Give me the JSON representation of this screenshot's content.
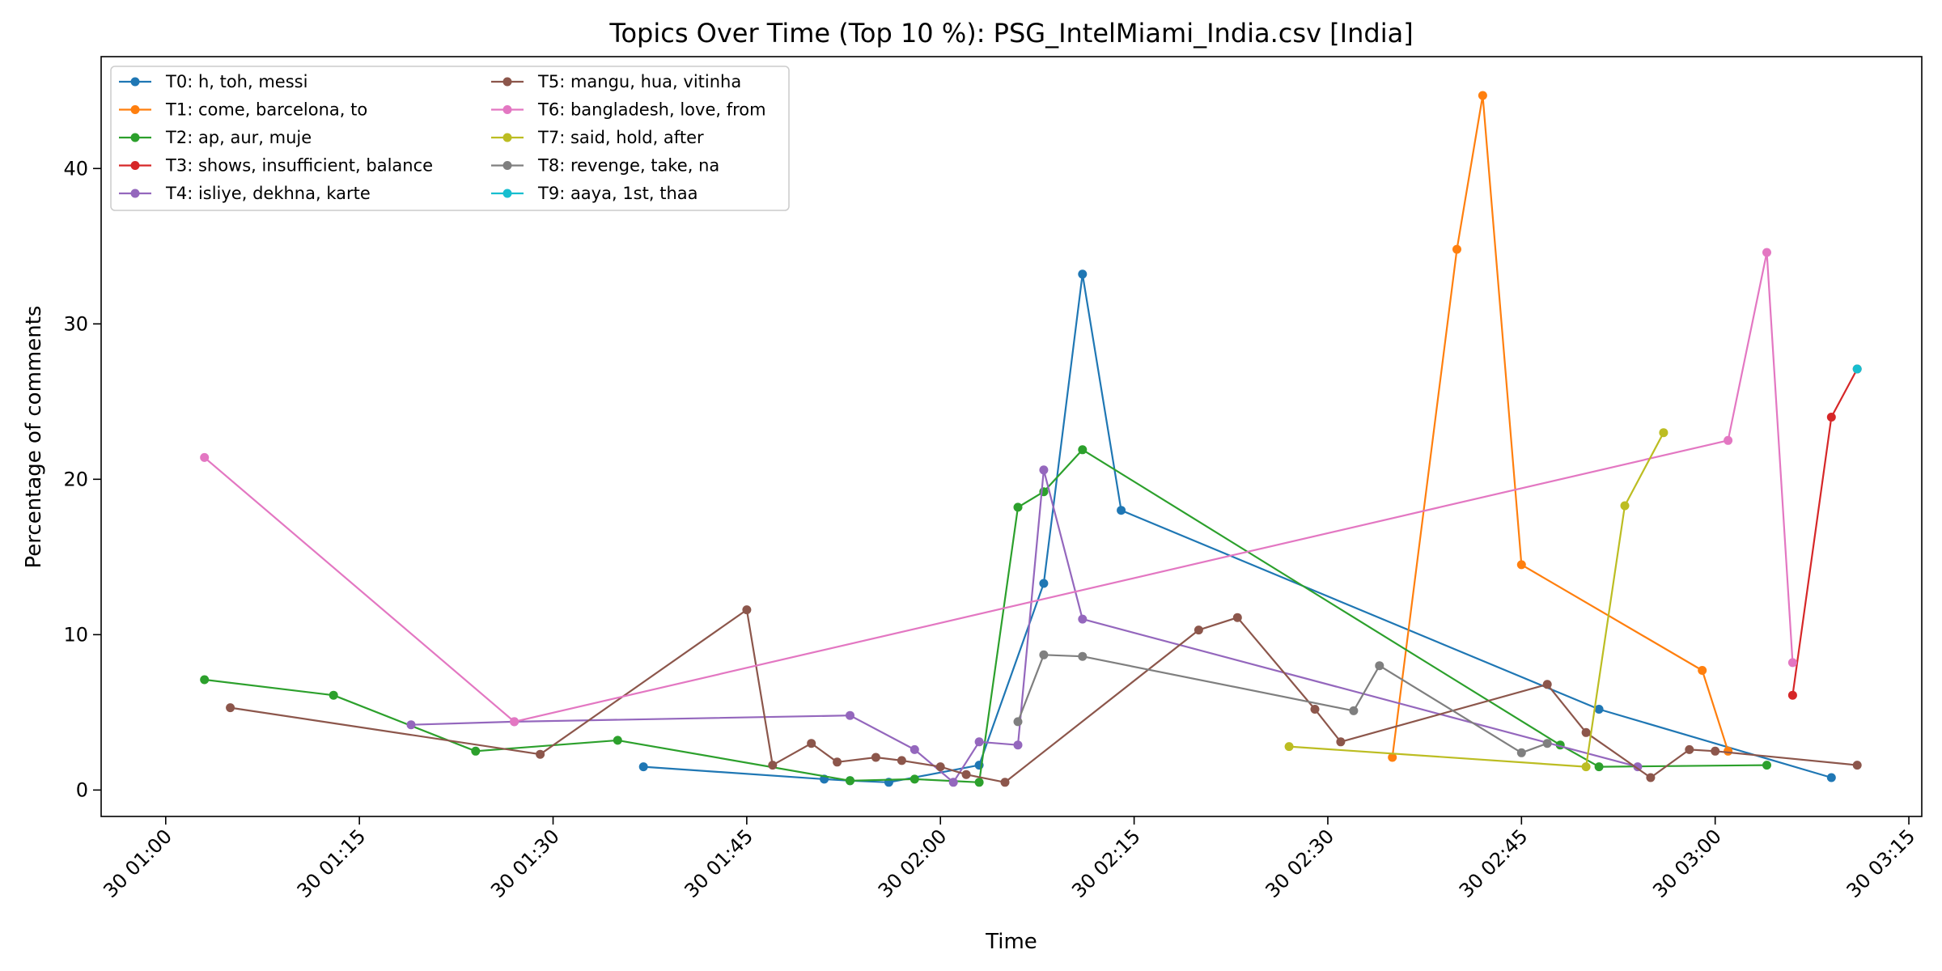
{
  "chart_data": {
    "type": "line",
    "title": "Topics Over Time (Top 10 %): PSG_IntelMiami_India.csv [India]",
    "xlabel": "Time",
    "ylabel": "Percentage of comments",
    "x_axis": {
      "kind": "time",
      "range": [
        "2023-07-30T00:55",
        "2023-07-30T03:16"
      ],
      "ticks": [
        "2023-07-30T01:00",
        "2023-07-30T01:15",
        "2023-07-30T01:30",
        "2023-07-30T01:45",
        "2023-07-30T02:00",
        "2023-07-30T02:15",
        "2023-07-30T02:30",
        "2023-07-30T02:45",
        "2023-07-30T03:00",
        "2023-07-30T03:15"
      ],
      "tick_labels": [
        "30 01:00",
        "30 01:15",
        "30 01:30",
        "30 01:45",
        "30 02:00",
        "30 02:15",
        "30 02:30",
        "30 02:45",
        "30 03:00",
        "30 03:15"
      ]
    },
    "y_axis": {
      "range": [
        -1.7,
        47.2
      ],
      "ticks": [
        0,
        10,
        20,
        30,
        40
      ],
      "tick_labels": [
        "0",
        "10",
        "20",
        "30",
        "40"
      ]
    },
    "grid": false,
    "legend": {
      "placement": "top-left",
      "columns": 2
    },
    "series": [
      {
        "name": "T0: h, toh, messi",
        "color": "#1f77b4",
        "points": [
          [
            "2023-07-30T01:37",
            1.5
          ],
          [
            "2023-07-30T01:51",
            0.7
          ],
          [
            "2023-07-30T01:53",
            0.6
          ],
          [
            "2023-07-30T01:56",
            0.5
          ],
          [
            "2023-07-30T02:03",
            1.6
          ],
          [
            "2023-07-30T02:08",
            13.3
          ],
          [
            "2023-07-30T02:11",
            33.2
          ],
          [
            "2023-07-30T02:14",
            18.0
          ],
          [
            "2023-07-30T02:51",
            5.2
          ],
          [
            "2023-07-30T03:09",
            0.8
          ]
        ]
      },
      {
        "name": "T1: come, barcelona, to",
        "color": "#ff7f0e",
        "points": [
          [
            "2023-07-30T02:35",
            2.1
          ],
          [
            "2023-07-30T02:40",
            34.8
          ],
          [
            "2023-07-30T02:42",
            44.7
          ],
          [
            "2023-07-30T02:45",
            14.5
          ],
          [
            "2023-07-30T02:59",
            7.7
          ],
          [
            "2023-07-30T03:01",
            2.5
          ]
        ]
      },
      {
        "name": "T2: ap, aur, muje",
        "color": "#2ca02c",
        "points": [
          [
            "2023-07-30T01:03",
            7.1
          ],
          [
            "2023-07-30T01:13",
            6.1
          ],
          [
            "2023-07-30T01:24",
            2.5
          ],
          [
            "2023-07-30T01:35",
            3.2
          ],
          [
            "2023-07-30T01:53",
            0.6
          ],
          [
            "2023-07-30T01:58",
            0.7
          ],
          [
            "2023-07-30T02:03",
            0.5
          ],
          [
            "2023-07-30T02:06",
            18.2
          ],
          [
            "2023-07-30T02:08",
            19.2
          ],
          [
            "2023-07-30T02:11",
            21.9
          ],
          [
            "2023-07-30T02:48",
            2.9
          ],
          [
            "2023-07-30T02:51",
            1.5
          ],
          [
            "2023-07-30T03:04",
            1.6
          ]
        ]
      },
      {
        "name": "T3: shows, insufficient, balance",
        "color": "#d62728",
        "points": [
          [
            "2023-07-30T03:06",
            6.1
          ],
          [
            "2023-07-30T03:09",
            24.0
          ],
          [
            "2023-07-30T03:11",
            27.1
          ]
        ]
      },
      {
        "name": "T4: isliye, dekhna, karte",
        "color": "#9467bd",
        "points": [
          [
            "2023-07-30T01:19",
            4.2
          ],
          [
            "2023-07-30T01:27",
            4.4
          ],
          [
            "2023-07-30T01:53",
            4.8
          ],
          [
            "2023-07-30T01:58",
            2.6
          ],
          [
            "2023-07-30T02:01",
            0.5
          ],
          [
            "2023-07-30T02:03",
            3.1
          ],
          [
            "2023-07-30T02:06",
            2.9
          ],
          [
            "2023-07-30T02:08",
            20.6
          ],
          [
            "2023-07-30T02:11",
            11.0
          ],
          [
            "2023-07-30T02:54",
            1.5
          ]
        ]
      },
      {
        "name": "T5: mangu, hua, vitinha",
        "color": "#8c564b",
        "points": [
          [
            "2023-07-30T01:05",
            5.3
          ],
          [
            "2023-07-30T01:29",
            2.3
          ],
          [
            "2023-07-30T01:45",
            11.6
          ],
          [
            "2023-07-30T01:47",
            1.6
          ],
          [
            "2023-07-30T01:50",
            3.0
          ],
          [
            "2023-07-30T01:52",
            1.8
          ],
          [
            "2023-07-30T01:55",
            2.1
          ],
          [
            "2023-07-30T01:57",
            1.9
          ],
          [
            "2023-07-30T02:00",
            1.5
          ],
          [
            "2023-07-30T02:02",
            1.0
          ],
          [
            "2023-07-30T02:05",
            0.5
          ],
          [
            "2023-07-30T02:20",
            10.3
          ],
          [
            "2023-07-30T02:23",
            11.1
          ],
          [
            "2023-07-30T02:29",
            5.2
          ],
          [
            "2023-07-30T02:31",
            3.1
          ],
          [
            "2023-07-30T02:47",
            6.8
          ],
          [
            "2023-07-30T02:50",
            3.7
          ],
          [
            "2023-07-30T02:55",
            0.8
          ],
          [
            "2023-07-30T02:58",
            2.6
          ],
          [
            "2023-07-30T03:00",
            2.5
          ],
          [
            "2023-07-30T03:11",
            1.6
          ]
        ]
      },
      {
        "name": "T6: bangladesh, love, from",
        "color": "#e377c2",
        "points": [
          [
            "2023-07-30T01:03",
            21.4
          ],
          [
            "2023-07-30T01:27",
            4.4
          ],
          [
            "2023-07-30T03:01",
            22.5
          ],
          [
            "2023-07-30T03:04",
            34.6
          ],
          [
            "2023-07-30T03:06",
            8.2
          ]
        ]
      },
      {
        "name": "T7: said, hold, after",
        "color": "#bcbd22",
        "points": [
          [
            "2023-07-30T02:27",
            2.8
          ],
          [
            "2023-07-30T02:50",
            1.5
          ],
          [
            "2023-07-30T02:53",
            18.3
          ],
          [
            "2023-07-30T02:56",
            23.0
          ]
        ]
      },
      {
        "name": "T8: revenge, take, na",
        "color": "#7f7f7f",
        "points": [
          [
            "2023-07-30T02:06",
            4.4
          ],
          [
            "2023-07-30T02:08",
            8.7
          ],
          [
            "2023-07-30T02:11",
            8.6
          ],
          [
            "2023-07-30T02:32",
            5.1
          ],
          [
            "2023-07-30T02:34",
            8.0
          ],
          [
            "2023-07-30T02:45",
            2.4
          ],
          [
            "2023-07-30T02:47",
            3.0
          ]
        ]
      },
      {
        "name": "T9: aaya, 1st, thaa",
        "color": "#17becf",
        "points": [
          [
            "2023-07-30T03:11",
            27.1
          ]
        ]
      }
    ]
  }
}
